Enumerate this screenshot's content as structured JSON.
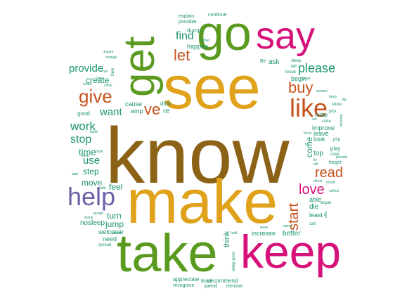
{
  "palette": {
    "brown": "#8c6216",
    "gold": "#e0a21a",
    "green": "#5a9a1f",
    "magenta": "#d6127a",
    "orange": "#c6521c",
    "purple": "#6e60a8",
    "teal": "#1b9470"
  },
  "words": [
    {
      "text": "know",
      "color": "brown"
    },
    {
      "text": "see",
      "color": "gold"
    },
    {
      "text": "make",
      "color": "gold"
    },
    {
      "text": "take",
      "color": "green"
    },
    {
      "text": "keep",
      "color": "magenta"
    },
    {
      "text": "go",
      "color": "green"
    },
    {
      "text": "say",
      "color": "magenta"
    },
    {
      "text": "get",
      "color": "green"
    },
    {
      "text": "like",
      "color": "orange"
    },
    {
      "text": "help",
      "color": "purple"
    },
    {
      "text": "give",
      "color": "orange"
    },
    {
      "text": "let",
      "color": "orange"
    },
    {
      "text": "ve",
      "color": "orange"
    },
    {
      "text": "buy",
      "color": "orange"
    },
    {
      "text": "please",
      "color": "teal"
    },
    {
      "text": "read",
      "color": "orange"
    },
    {
      "text": "love",
      "color": "magenta"
    },
    {
      "text": "start",
      "color": "orange"
    },
    {
      "text": "find",
      "color": "teal"
    },
    {
      "text": "provide",
      "color": "teal"
    },
    {
      "text": "work",
      "color": "teal"
    },
    {
      "text": "stop",
      "color": "teal"
    },
    {
      "text": "want",
      "color": "teal"
    },
    {
      "text": "use",
      "color": "teal"
    },
    {
      "text": "time",
      "color": "teal"
    },
    {
      "text": "create",
      "color": "teal"
    },
    {
      "text": "step",
      "color": "teal"
    },
    {
      "text": "move",
      "color": "teal"
    },
    {
      "text": "feel",
      "color": "teal"
    },
    {
      "text": "turn",
      "color": "teal"
    },
    {
      "text": "jump",
      "color": "teal"
    },
    {
      "text": "nosleep",
      "color": "teal"
    },
    {
      "text": "welcome",
      "color": "teal"
    },
    {
      "text": "need",
      "color": "teal"
    },
    {
      "text": "think",
      "color": "teal"
    },
    {
      "text": "increase",
      "color": "teal"
    },
    {
      "text": "better",
      "color": "teal"
    },
    {
      "text": "come",
      "color": "teal"
    },
    {
      "text": "top",
      "color": "teal"
    },
    {
      "text": "look",
      "color": "teal"
    },
    {
      "text": "leave",
      "color": "teal"
    },
    {
      "text": "improve",
      "color": "teal"
    },
    {
      "text": "die",
      "color": "teal"
    },
    {
      "text": "able",
      "color": "teal"
    },
    {
      "text": "least",
      "color": "teal"
    },
    {
      "text": "ask",
      "color": "teal"
    },
    {
      "text": "begin",
      "color": "teal"
    },
    {
      "text": "happen",
      "color": "teal"
    },
    {
      "text": "dump",
      "color": "teal"
    },
    {
      "text": "explain",
      "color": "teal"
    },
    {
      "text": "possible",
      "color": "teal"
    },
    {
      "text": "continue",
      "color": "teal"
    },
    {
      "text": "appreciate",
      "color": "teal"
    },
    {
      "text": "lead",
      "color": "teal"
    },
    {
      "text": "recommend",
      "color": "teal"
    },
    {
      "text": "recognize",
      "color": "teal"
    },
    {
      "text": "spend",
      "color": "teal"
    },
    {
      "text": "remove",
      "color": "teal"
    },
    {
      "text": "cause",
      "color": "teal"
    },
    {
      "text": "amp",
      "color": "teal"
    },
    {
      "text": "re",
      "color": "teal"
    },
    {
      "text": "didn",
      "color": "teal"
    },
    {
      "text": "good",
      "color": "teal"
    },
    {
      "text": "pick",
      "color": "teal"
    },
    {
      "text": "raise",
      "color": "teal"
    },
    {
      "text": "play",
      "color": "teal"
    },
    {
      "text": "case",
      "color": "teal"
    },
    {
      "text": "forget",
      "color": "teal"
    },
    {
      "text": "argue",
      "color": "teal"
    },
    {
      "text": "result",
      "color": "teal"
    },
    {
      "text": "collect",
      "color": "teal"
    },
    {
      "text": "show",
      "color": "teal"
    },
    {
      "text": "tell",
      "color": "teal"
    },
    {
      "text": "break",
      "color": "teal"
    },
    {
      "text": "great",
      "color": "teal"
    },
    {
      "text": "answer",
      "color": "teal"
    },
    {
      "text": "deep",
      "color": "teal"
    },
    {
      "text": "call",
      "color": "teal"
    },
    {
      "text": "name",
      "color": "teal"
    },
    {
      "text": "learn",
      "color": "teal"
    },
    {
      "text": "hold",
      "color": "teal"
    },
    {
      "text": "spread",
      "color": "teal"
    },
    {
      "text": "post",
      "color": "teal"
    },
    {
      "text": "sleep",
      "color": "teal"
    },
    {
      "text": "accept",
      "color": "teal"
    },
    {
      "text": "save",
      "color": "teal"
    },
    {
      "text": "thank",
      "color": "teal"
    },
    {
      "text": "care",
      "color": "teal"
    },
    {
      "text": "wait",
      "color": "teal"
    },
    {
      "text": "add",
      "color": "teal"
    },
    {
      "text": "build",
      "color": "teal"
    },
    {
      "text": "require",
      "color": "teal"
    },
    {
      "text": "change",
      "color": "teal"
    },
    {
      "text": "run",
      "color": "teal"
    },
    {
      "text": "solve",
      "color": "teal"
    },
    {
      "text": "smart",
      "color": "teal"
    },
    {
      "text": "fake",
      "color": "teal"
    },
    {
      "text": "sleep",
      "color": "teal"
    },
    {
      "text": "either",
      "color": "teal"
    },
    {
      "text": "set",
      "color": "teal"
    },
    {
      "text": "Be",
      "color": "teal"
    },
    {
      "text": "nnttp",
      "color": "teal"
    },
    {
      "text": "force",
      "color": "teal"
    },
    {
      "text": "direct",
      "color": "teal"
    },
    {
      "text": "php",
      "color": "teal"
    },
    {
      "text": "provide",
      "color": "teal"
    },
    {
      "text": "stil",
      "color": "teal"
    },
    {
      "text": "lie",
      "color": "teal"
    },
    {
      "text": "offer",
      "color": "teal"
    },
    {
      "text": "become",
      "color": "teal"
    },
    {
      "text": "blow",
      "color": "teal"
    },
    {
      "text": "br",
      "color": "teal"
    },
    {
      "text": "dig",
      "color": "teal"
    },
    {
      "text": "mean",
      "color": "teal"
    }
  ]
}
